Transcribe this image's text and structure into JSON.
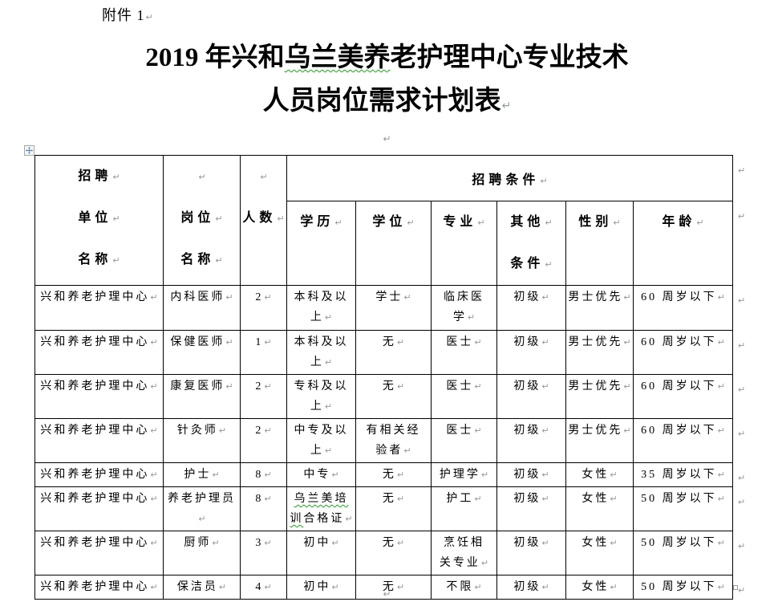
{
  "document": {
    "attachment": "附件 1",
    "title": {
      "line1_pre": "2019 年兴和",
      "line1_wavy": "乌兰美养",
      "line1_post": "老护理中心专业技术",
      "line2": "人员岗位需求计划表"
    }
  },
  "table": {
    "header": {
      "recruit_unit_lines": [
        "招聘",
        "单位",
        "名称"
      ],
      "position_lines": [
        "岗位",
        "名称"
      ],
      "headcount": "人数",
      "conditions_group": "招聘条件",
      "sub_columns": [
        [
          "学历"
        ],
        [
          "学位"
        ],
        [
          "专业"
        ],
        [
          "其他",
          "条件"
        ],
        [
          "性别"
        ],
        [
          "年龄"
        ]
      ]
    },
    "rows": [
      {
        "cells": [
          "兴和养老护理中心",
          "内科医师",
          "2",
          "本科及以\n上",
          "学士",
          "临床医\n学",
          "初级",
          "男士优先",
          "60 周岁以下"
        ]
      },
      {
        "cells": [
          "兴和养老护理中心",
          "保健医师",
          "1",
          "本科及以\n上",
          "无",
          "医士",
          "初级",
          "男士优先",
          "60 周岁以下"
        ]
      },
      {
        "cells": [
          "兴和养老护理中心",
          "康复医师",
          "2",
          "专科及以\n上",
          "无",
          "医士",
          "初级",
          "男士优先",
          "60 周岁以下"
        ]
      },
      {
        "cells": [
          "兴和养老护理中心",
          "针灸师",
          "2",
          "中专及以\n上",
          "有相关经\n验者",
          "医士",
          "初级",
          "男士优先",
          "60 周岁以下"
        ]
      },
      {
        "cells": [
          "兴和养老护理中心",
          "护士",
          "8",
          "中专",
          "无",
          "护理学",
          "初级",
          "女性",
          "35 周岁以下"
        ]
      },
      {
        "cells": [
          "兴和养老护理中心",
          "养老护理员",
          "8",
          {
            "segments": [
              {
                "text": "乌兰美培\n训",
                "wavy": true
              },
              {
                "text": "合格证",
                "wavy": false
              }
            ]
          },
          "无",
          "护工",
          "初级",
          "女性",
          "50 周岁以下"
        ]
      },
      {
        "cells": [
          "兴和养老护理中心",
          "厨师",
          "3",
          "初中",
          "无",
          "烹饪相\n关专业",
          "初级",
          "女性",
          "50 周岁以下"
        ]
      },
      {
        "cells": [
          "兴和养老护理中心",
          "保洁员",
          "4",
          "初中",
          "无",
          "不限",
          "初级",
          "女性",
          "50 周岁以下"
        ]
      }
    ]
  },
  "colors": {
    "page_background": "#ffffff",
    "table_border": "#000000",
    "spellcheck_wavy": "#17a317",
    "formatting_mark": "#9199a1",
    "move_handle_arrow": "#4a7ebb"
  }
}
